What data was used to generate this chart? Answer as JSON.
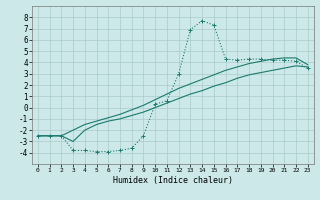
{
  "title": "",
  "xlabel": "Humidex (Indice chaleur)",
  "bg_color": "#cce8e8",
  "grid_color": "#aacccc",
  "line_color": "#1a7a6e",
  "x_values": [
    0,
    1,
    2,
    3,
    4,
    5,
    6,
    7,
    8,
    9,
    10,
    11,
    12,
    13,
    14,
    15,
    16,
    17,
    18,
    19,
    20,
    21,
    22,
    23
  ],
  "line1_y": [
    -2.5,
    -2.5,
    -2.5,
    -3.8,
    -3.8,
    -3.9,
    -3.9,
    -3.8,
    -3.6,
    -2.5,
    0.3,
    0.6,
    3.0,
    6.9,
    7.7,
    7.3,
    4.3,
    4.2,
    4.3,
    4.3,
    4.2,
    4.2,
    4.1,
    3.5
  ],
  "line2_y": [
    -2.5,
    -2.5,
    -2.5,
    -3.0,
    -2.0,
    -1.5,
    -1.2,
    -1.0,
    -0.7,
    -0.4,
    0.0,
    0.4,
    0.8,
    1.2,
    1.5,
    1.9,
    2.2,
    2.6,
    2.9,
    3.1,
    3.3,
    3.5,
    3.7,
    3.6
  ],
  "line3_y": [
    -2.5,
    -2.5,
    -2.5,
    -2.0,
    -1.5,
    -1.2,
    -0.9,
    -0.6,
    -0.2,
    0.2,
    0.7,
    1.2,
    1.7,
    2.1,
    2.5,
    2.9,
    3.3,
    3.6,
    3.9,
    4.1,
    4.3,
    4.4,
    4.4,
    3.8
  ],
  "ylim": [
    -5,
    9
  ],
  "xlim": [
    -0.5,
    23.5
  ],
  "yticks": [
    -4,
    -3,
    -2,
    -1,
    0,
    1,
    2,
    3,
    4,
    5,
    6,
    7,
    8
  ],
  "xticks": [
    0,
    1,
    2,
    3,
    4,
    5,
    6,
    7,
    8,
    9,
    10,
    11,
    12,
    13,
    14,
    15,
    16,
    17,
    18,
    19,
    20,
    21,
    22,
    23
  ]
}
